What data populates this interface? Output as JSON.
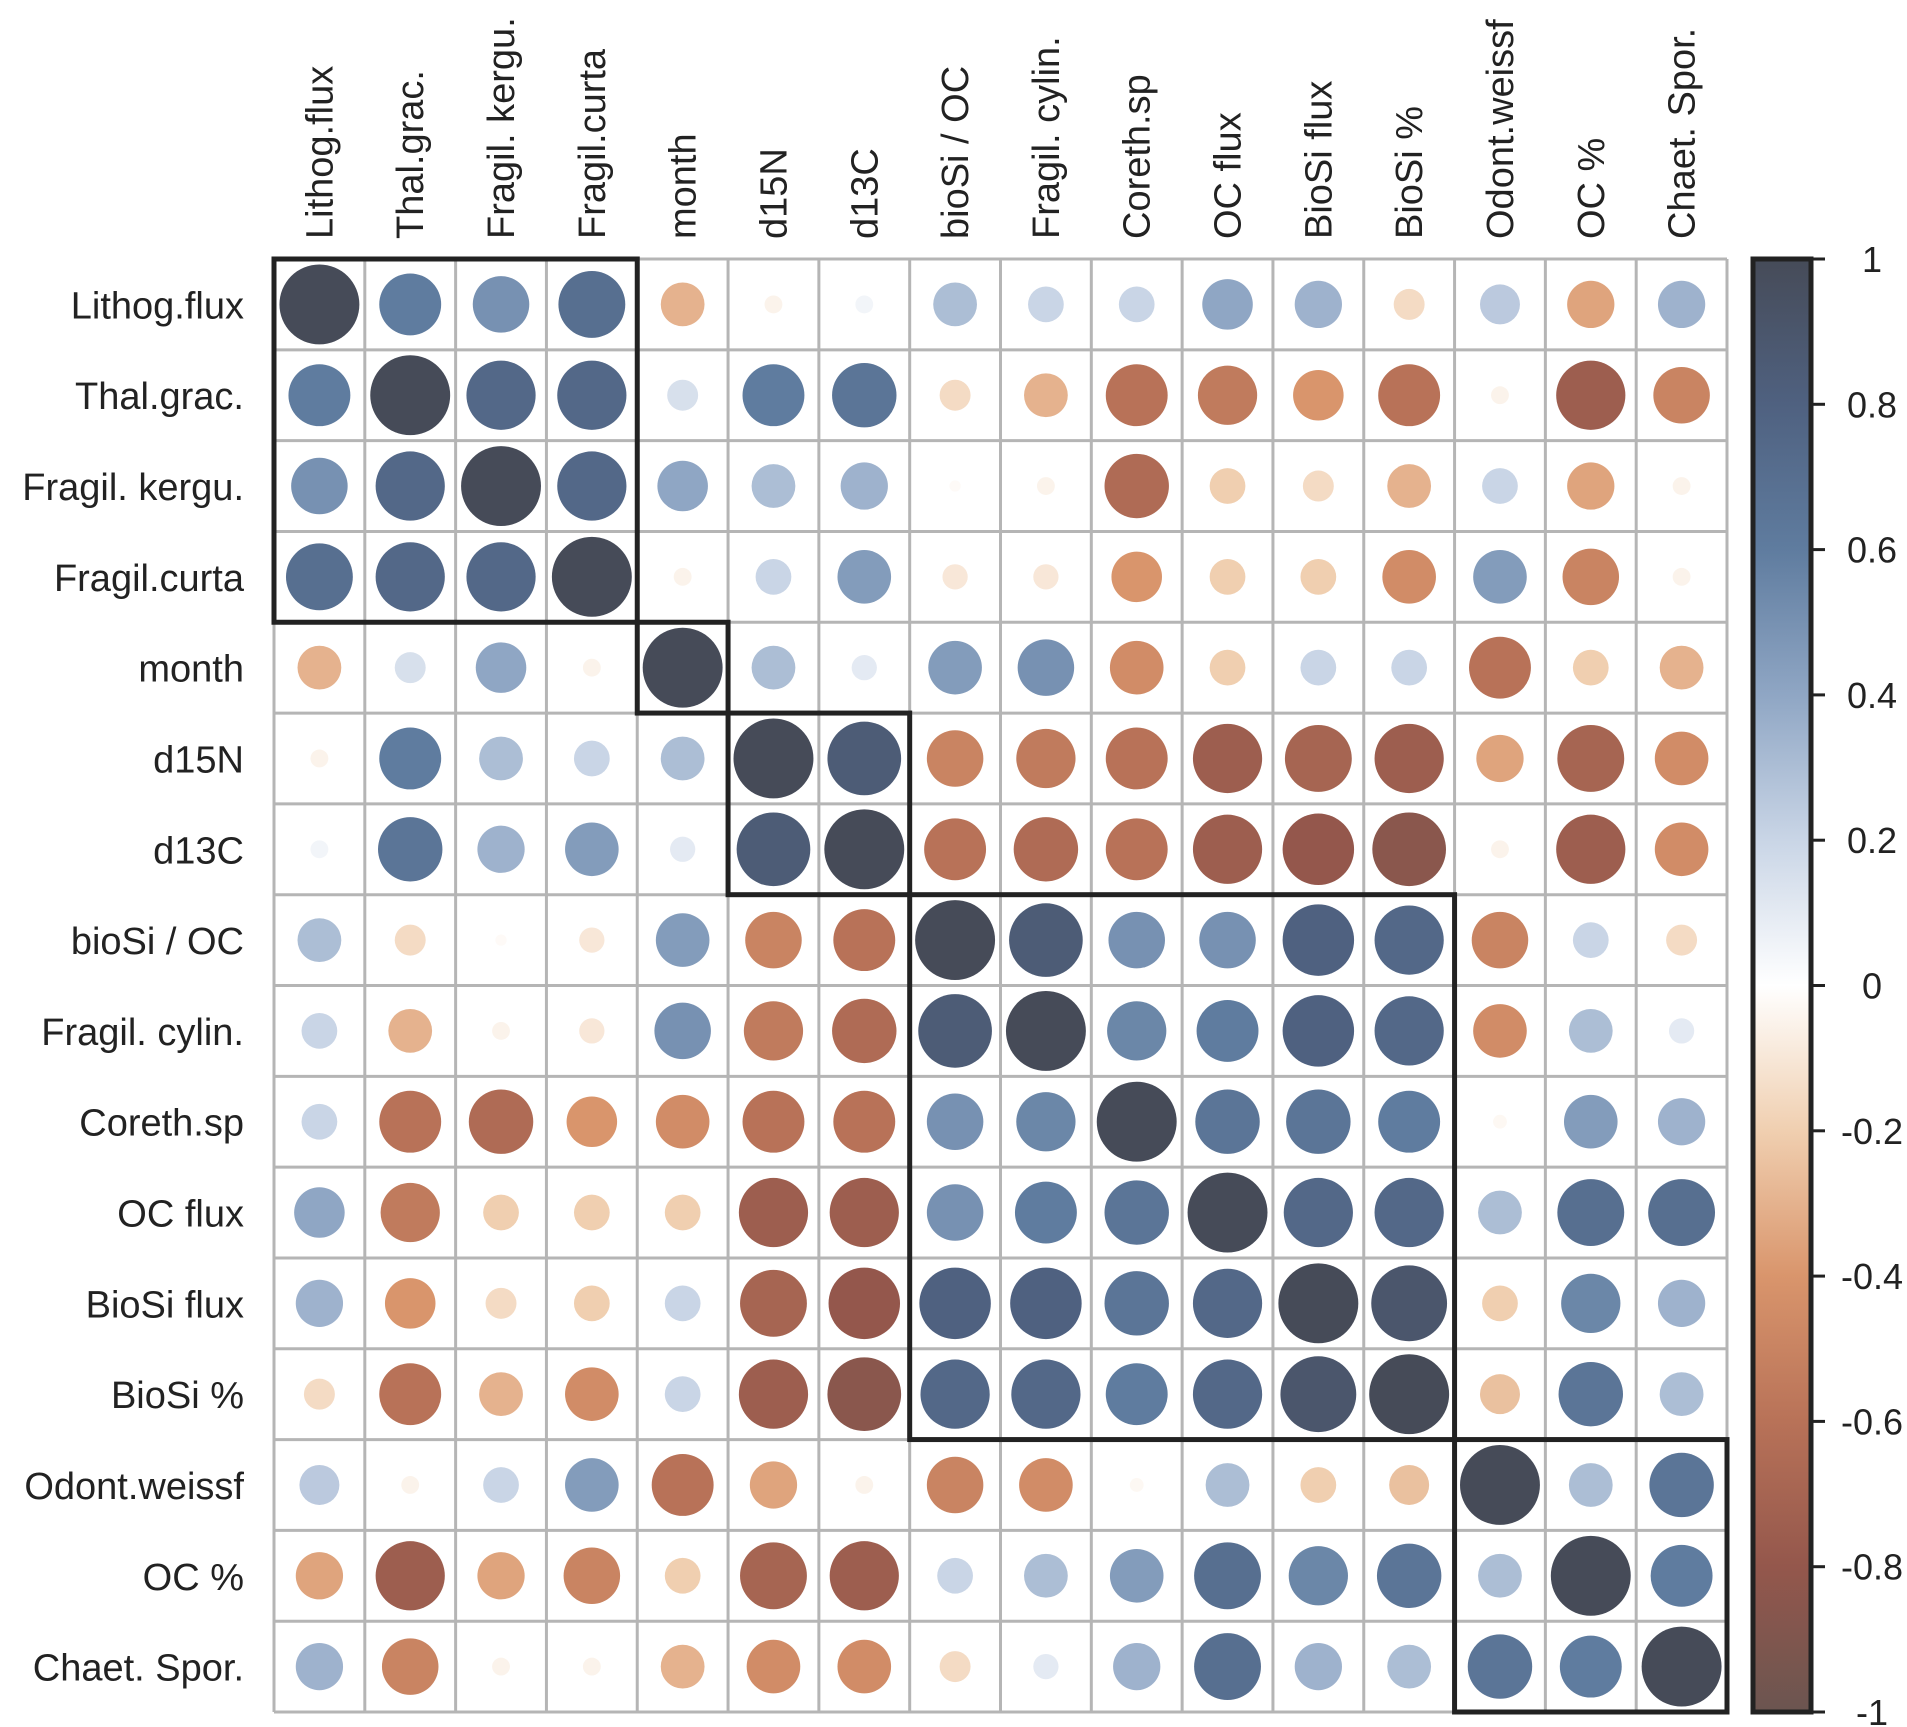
{
  "chart_data": {
    "type": "heatmap",
    "subtype": "correlation-circles",
    "variables": [
      "Lithog.flux",
      "Thal.grac.",
      "Fragil. kergu.",
      "Fragil.curta",
      "month",
      "d15N",
      "d13C",
      "bioSi / OC",
      "Fragil. cylin.",
      "Coreth.sp",
      "OC flux",
      "BioSi flux",
      "BioSi %",
      "Odont.weissf",
      "OC %",
      "Chaet. Spor."
    ],
    "matrix": [
      [
        1,
        0.6,
        0.5,
        0.7,
        -0.3,
        -0.05,
        0.05,
        0.3,
        0.2,
        0.2,
        0.4,
        0.35,
        -0.15,
        0.25,
        -0.35,
        0.35
      ],
      [
        0.6,
        1,
        0.75,
        0.75,
        0.15,
        0.6,
        0.65,
        -0.15,
        -0.3,
        -0.6,
        -0.55,
        -0.4,
        -0.6,
        -0.05,
        -0.75,
        -0.5
      ],
      [
        0.5,
        0.75,
        1,
        0.75,
        0.4,
        0.3,
        0.35,
        -0.02,
        -0.05,
        -0.65,
        -0.2,
        -0.15,
        -0.3,
        0.2,
        -0.35,
        -0.05
      ],
      [
        0.7,
        0.75,
        0.75,
        1,
        -0.05,
        0.2,
        0.45,
        -0.1,
        -0.1,
        -0.4,
        -0.2,
        -0.2,
        -0.45,
        0.45,
        -0.5,
        -0.05
      ],
      [
        -0.3,
        0.15,
        0.4,
        -0.05,
        1,
        0.3,
        0.1,
        0.45,
        0.5,
        -0.45,
        -0.2,
        0.2,
        0.2,
        -0.6,
        -0.2,
        -0.3
      ],
      [
        -0.05,
        0.6,
        0.3,
        0.2,
        0.3,
        1,
        0.85,
        -0.5,
        -0.55,
        -0.6,
        -0.75,
        -0.7,
        -0.75,
        -0.35,
        -0.7,
        -0.45
      ],
      [
        0.05,
        0.65,
        0.35,
        0.45,
        0.1,
        0.85,
        1,
        -0.6,
        -0.65,
        -0.6,
        -0.75,
        -0.8,
        -0.85,
        -0.05,
        -0.75,
        -0.45
      ],
      [
        0.3,
        -0.15,
        -0.02,
        -0.1,
        0.45,
        -0.5,
        -0.6,
        1,
        0.85,
        0.5,
        0.5,
        0.8,
        0.75,
        -0.5,
        0.2,
        -0.15
      ],
      [
        0.2,
        -0.3,
        -0.05,
        -0.1,
        0.5,
        -0.55,
        -0.65,
        0.85,
        1,
        0.55,
        0.6,
        0.8,
        0.75,
        -0.45,
        0.3,
        0.1
      ],
      [
        0.2,
        -0.6,
        -0.65,
        -0.4,
        -0.45,
        -0.6,
        -0.6,
        0.5,
        0.55,
        1,
        0.65,
        0.65,
        0.6,
        -0.03,
        0.45,
        0.35
      ],
      [
        0.4,
        -0.55,
        -0.2,
        -0.2,
        -0.2,
        -0.75,
        -0.75,
        0.5,
        0.6,
        0.65,
        1,
        0.75,
        0.75,
        0.3,
        0.7,
        0.7
      ],
      [
        0.35,
        -0.4,
        -0.15,
        -0.2,
        0.2,
        -0.7,
        -0.8,
        0.8,
        0.8,
        0.65,
        0.75,
        1,
        0.9,
        -0.2,
        0.55,
        0.35
      ],
      [
        -0.15,
        -0.6,
        -0.3,
        -0.45,
        0.2,
        -0.75,
        -0.85,
        0.75,
        0.75,
        0.6,
        0.75,
        0.9,
        1,
        -0.25,
        0.65,
        0.3
      ],
      [
        0.25,
        -0.05,
        0.2,
        0.45,
        -0.6,
        -0.35,
        -0.05,
        -0.5,
        -0.45,
        -0.03,
        0.3,
        -0.2,
        -0.25,
        1,
        0.3,
        0.65
      ],
      [
        -0.35,
        -0.75,
        -0.35,
        -0.5,
        -0.2,
        -0.7,
        -0.75,
        0.2,
        0.3,
        0.45,
        0.7,
        0.55,
        0.65,
        0.3,
        1,
        0.6
      ],
      [
        0.35,
        -0.5,
        -0.05,
        -0.05,
        -0.3,
        -0.45,
        -0.45,
        -0.15,
        0.1,
        0.35,
        0.7,
        0.35,
        0.3,
        0.65,
        0.6,
        1
      ]
    ],
    "clusters": [
      [
        0,
        3
      ],
      [
        4,
        4
      ],
      [
        5,
        6
      ],
      [
        7,
        12
      ],
      [
        13,
        15
      ]
    ],
    "color_scale": {
      "range": [
        -1,
        1
      ],
      "ticks": [
        "1",
        "0.8",
        "0.6",
        "0.4",
        "0.2",
        "0",
        "-0.2",
        "-0.4",
        "-0.6",
        "-0.8",
        "-1"
      ],
      "tick_values": [
        1,
        0.8,
        0.6,
        0.4,
        0.2,
        0,
        -0.2,
        -0.4,
        -0.6,
        -0.8,
        -1
      ],
      "stops": [
        {
          "v": -1,
          "c": "#6b5550"
        },
        {
          "v": -0.8,
          "c": "#94574c"
        },
        {
          "v": -0.6,
          "c": "#b87258"
        },
        {
          "v": -0.4,
          "c": "#d9956c"
        },
        {
          "v": -0.2,
          "c": "#f0cfb0"
        },
        {
          "v": 0,
          "c": "#ffffff"
        },
        {
          "v": 0.2,
          "c": "#c9d5e6"
        },
        {
          "v": 0.4,
          "c": "#8fa6c4"
        },
        {
          "v": 0.6,
          "c": "#5f7c9f"
        },
        {
          "v": 0.8,
          "c": "#4f6180"
        },
        {
          "v": 1,
          "c": "#464b58"
        }
      ]
    },
    "legend": "right",
    "grid": true
  }
}
